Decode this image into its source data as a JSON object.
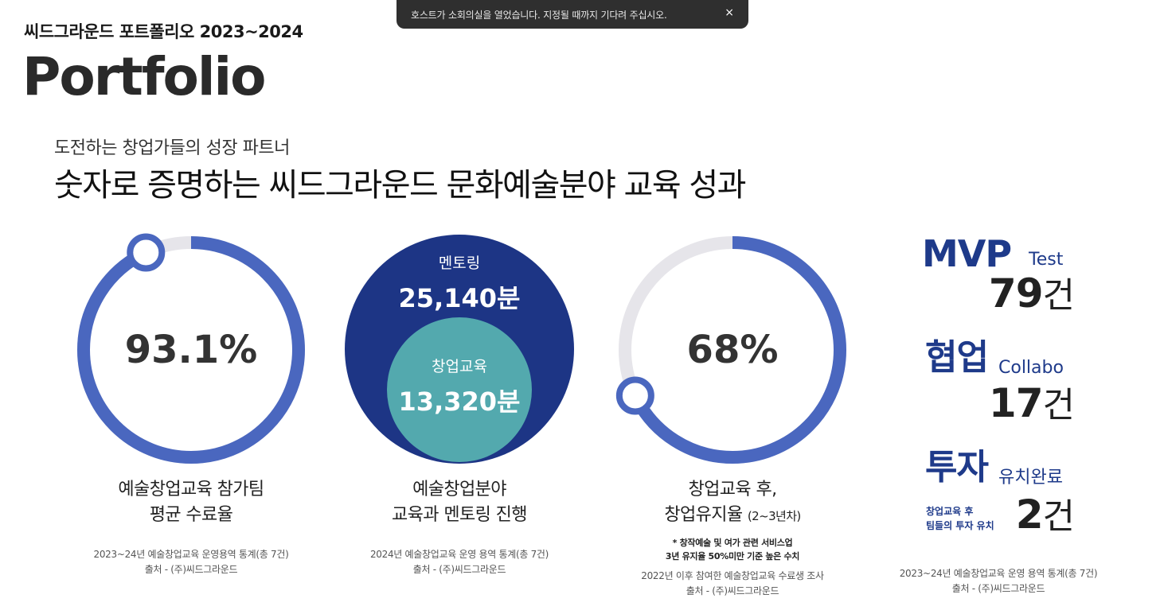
{
  "toast": {
    "message": "호스트가 소회의실을 열었습니다. 지정될 때까지 기다려 주십시오.",
    "close": "×"
  },
  "header": {
    "title": "씨드그라운드 포트폴리오 2023~2024",
    "big_title": "Portfolio"
  },
  "intro": {
    "subtitle": "도전하는 창업가들의 성장 파트너",
    "headline": "숫자로 증명하는 씨드그라운드 문화예술분야 교육 성과"
  },
  "stats": [
    {
      "value": "93.1%",
      "progress": 0.931,
      "caption_line1": "예술창업교육 참가팀",
      "caption_line2": "평균 수료율",
      "source_line1": "2023~24년 예술창업교육 운영용역 통계(총 7건)",
      "source_line2": "출처 - (주)씨드그라운드"
    },
    {
      "outer_label": "멘토링",
      "outer_value": "25,140분",
      "inner_label": "창업교육",
      "inner_value": "13,320분",
      "caption_line1": "예술창업분야",
      "caption_line2": "교육과 멘토링 진행",
      "source_line1": "2024년 예술창업교육 운영 용역 통계(총 7건)",
      "source_line2": "출처 - (주)씨드그라운드"
    },
    {
      "value": "68%",
      "progress": 0.68,
      "caption_line1": "창업교육 후,",
      "caption_line2": "창업유지율",
      "caption_suffix": "(2~3년차)",
      "note_line1": "* 창작예술 및 여가 관련 서비스업",
      "note_line2": "3년 유지율 50%미만 기준 높은 수치",
      "source_line1": "2022년 이후 참여한 예술창업교육 수료생 조사",
      "source_line2": "출처 - (주)씨드그라운드"
    }
  ],
  "side": {
    "mvp": {
      "big": "MVP",
      "sub": "Test",
      "num": "79",
      "unit": "건"
    },
    "collab": {
      "big": "협업",
      "sub": "Collabo",
      "num": "17",
      "unit": "건"
    },
    "invest": {
      "big": "투자",
      "sub": "유치완료",
      "note_line1": "창업교육 후",
      "note_line2": "팀들의 투자 유치",
      "num": "2",
      "unit": "건"
    },
    "source_line1": "2023~24년 예술창업교육 운영 용역 통계(총 7건)",
    "source_line2": "출처 - (주)씨드그라운드"
  },
  "colors": {
    "ring": "#4a67bf",
    "track": "#e6e5ea",
    "navy": "#1d3585",
    "teal": "#53a9ae",
    "accent": "#1e3a8a"
  }
}
